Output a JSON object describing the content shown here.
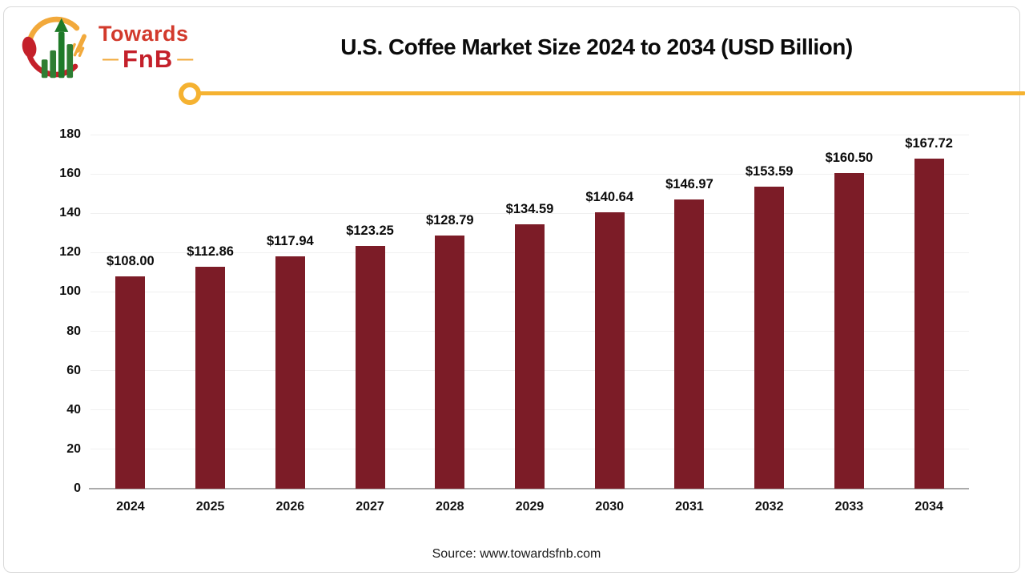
{
  "logo": {
    "towards": "Towards",
    "fnb": "FnB",
    "dash_left": "—",
    "dash_right": "—"
  },
  "header": {
    "title": "U.S. Coffee Market Size 2024 to 2034 (USD Billion)"
  },
  "chart_data": {
    "type": "bar",
    "title": "U.S. Coffee Market Size 2024 to 2034 (USD Billion)",
    "categories": [
      "2024",
      "2025",
      "2026",
      "2027",
      "2028",
      "2029",
      "2030",
      "2031",
      "2032",
      "2033",
      "2034"
    ],
    "values": [
      108.0,
      112.86,
      117.94,
      123.25,
      128.79,
      134.59,
      140.64,
      146.97,
      153.59,
      160.5,
      167.72
    ],
    "value_labels": [
      "$108.00",
      "$112.86",
      "$117.94",
      "$123.25",
      "$128.79",
      "$134.59",
      "$140.64",
      "$146.97",
      "$153.59",
      "$160.50",
      "$167.72"
    ],
    "xlabel": "",
    "ylabel": "",
    "ylim": [
      0,
      180
    ],
    "yticks": [
      0,
      20,
      40,
      60,
      80,
      100,
      120,
      140,
      160,
      180
    ],
    "grid": "horizontal",
    "legend_position": "none"
  },
  "footer": {
    "source": "Source: www.towardsfnb.com"
  },
  "colors": {
    "bar": "#7c1c27",
    "accent_yellow": "#f5b231",
    "grid": "#f0f0f0",
    "axis": "#ababab",
    "logo_red": "#c4202a",
    "logo_green": "#2e7d32"
  }
}
